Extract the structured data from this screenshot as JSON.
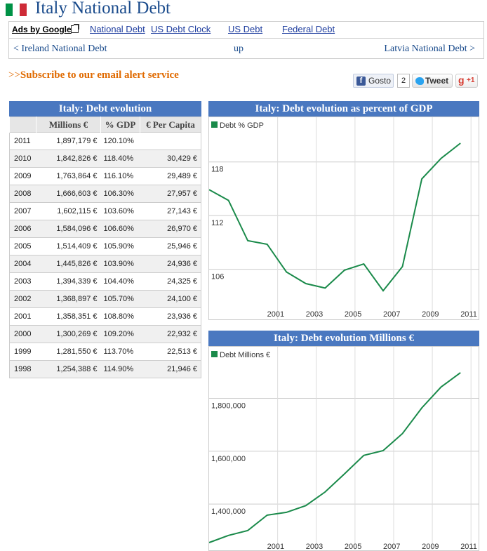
{
  "header": {
    "title": "Italy National Debt",
    "flag_colors": [
      "#009246",
      "#ffffff",
      "#ce2b37"
    ]
  },
  "ads_bar": {
    "ads_label": "Ads by Google",
    "links": [
      "National Debt",
      "US Debt Clock",
      "US Debt",
      "Federal Debt"
    ]
  },
  "nav": {
    "prev": "< Ireland National Debt",
    "up": "up",
    "next": "Latvia National Debt >"
  },
  "subscribe": {
    "prefix": ">>",
    "text": "Subscribe to our email alert service"
  },
  "social": {
    "facebook_label": "Gosto",
    "facebook_count": "2",
    "tweet_label": "Tweet",
    "gplus_label": "+1"
  },
  "table": {
    "title": "Italy: Debt evolution",
    "headers": [
      "",
      "Millions €",
      "% GDP",
      "€ Per Capita"
    ],
    "rows": [
      {
        "year": "2011",
        "millions": "1,897,179 €",
        "pct_gdp": "120.10%",
        "per_capita": ""
      },
      {
        "year": "2010",
        "millions": "1,842,826 €",
        "pct_gdp": "118.40%",
        "per_capita": "30,429 €"
      },
      {
        "year": "2009",
        "millions": "1,763,864 €",
        "pct_gdp": "116.10%",
        "per_capita": "29,489 €"
      },
      {
        "year": "2008",
        "millions": "1,666,603 €",
        "pct_gdp": "106.30%",
        "per_capita": "27,957 €"
      },
      {
        "year": "2007",
        "millions": "1,602,115 €",
        "pct_gdp": "103.60%",
        "per_capita": "27,143 €"
      },
      {
        "year": "2006",
        "millions": "1,584,096 €",
        "pct_gdp": "106.60%",
        "per_capita": "26,970 €"
      },
      {
        "year": "2005",
        "millions": "1,514,409 €",
        "pct_gdp": "105.90%",
        "per_capita": "25,946 €"
      },
      {
        "year": "2004",
        "millions": "1,445,826 €",
        "pct_gdp": "103.90%",
        "per_capita": "24,936 €"
      },
      {
        "year": "2003",
        "millions": "1,394,339 €",
        "pct_gdp": "104.40%",
        "per_capita": "24,325 €"
      },
      {
        "year": "2002",
        "millions": "1,368,897 €",
        "pct_gdp": "105.70%",
        "per_capita": "24,100 €"
      },
      {
        "year": "2001",
        "millions": "1,358,351 €",
        "pct_gdp": "108.80%",
        "per_capita": "23,936 €"
      },
      {
        "year": "2000",
        "millions": "1,300,269 €",
        "pct_gdp": "109.20%",
        "per_capita": "22,932 €"
      },
      {
        "year": "1999",
        "millions": "1,281,550 €",
        "pct_gdp": "113.70%",
        "per_capita": "22,513 €"
      },
      {
        "year": "1998",
        "millions": "1,254,388 €",
        "pct_gdp": "114.90%",
        "per_capita": "21,946 €"
      }
    ]
  },
  "chart_data": [
    {
      "type": "line",
      "title": "Italy: Debt evolution as percent of GDP",
      "xlabel": "",
      "ylabel": "",
      "x": [
        1998,
        1999,
        2000,
        2001,
        2002,
        2003,
        2004,
        2005,
        2006,
        2007,
        2008,
        2009,
        2010,
        2011
      ],
      "series": [
        {
          "name": "Debt % GDP",
          "values": [
            114.9,
            113.7,
            109.2,
            108.8,
            105.7,
            104.4,
            103.9,
            105.9,
            106.6,
            103.6,
            106.3,
            116.1,
            118.4,
            120.1
          ],
          "color": "#1a8a4a"
        }
      ],
      "x_ticks": [
        2001,
        2003,
        2005,
        2007,
        2009,
        2011
      ],
      "y_ticks": [
        106,
        112,
        118
      ],
      "xlim": [
        1998,
        2011.9
      ],
      "ylim": [
        100.4,
        123.0
      ],
      "grid": true,
      "legend": "top-left"
    },
    {
      "type": "line",
      "title": "Italy: Debt evolution Millions €",
      "xlabel": "",
      "ylabel": "",
      "x": [
        1998,
        1999,
        2000,
        2001,
        2002,
        2003,
        2004,
        2005,
        2006,
        2007,
        2008,
        2009,
        2010,
        2011
      ],
      "series": [
        {
          "name": "Debt Millions €",
          "values": [
            1254388,
            1281550,
            1300269,
            1358351,
            1368897,
            1394339,
            1445826,
            1514409,
            1584096,
            1602115,
            1666603,
            1763864,
            1842826,
            1897179
          ],
          "color": "#1a8a4a"
        }
      ],
      "x_ticks": [
        2001,
        2003,
        2005,
        2007,
        2009,
        2011
      ],
      "y_ticks": [
        1400000,
        1600000,
        1800000
      ],
      "y_tick_labels": [
        "1,400,000",
        "1,600,000",
        "1,800,000"
      ],
      "xlim": [
        1998,
        2011.9
      ],
      "ylim": [
        1220000,
        1995000
      ],
      "grid": true,
      "legend": "top-left"
    }
  ]
}
